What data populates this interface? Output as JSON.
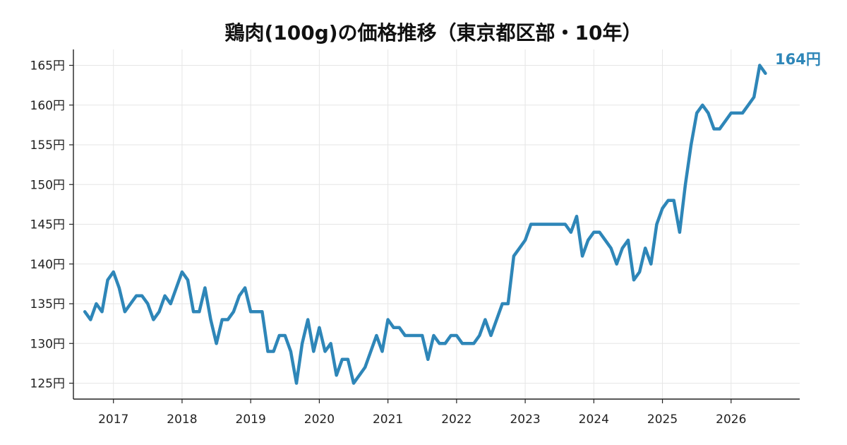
{
  "chart_data": {
    "type": "line",
    "title": "鶏肉(100g)の価格推移（東京都区部・10年）",
    "xlabel": "",
    "ylabel": "",
    "y_unit": "円",
    "ylim": [
      123,
      167
    ],
    "xlim": [
      "2016-06",
      "2027-01"
    ],
    "grid": true,
    "legend": "none",
    "line_color": "#2e86b8",
    "y_ticks": [
      "125円",
      "130円",
      "135円",
      "140円",
      "145円",
      "150円",
      "155円",
      "160円",
      "165円"
    ],
    "x_ticks": [
      "2017",
      "2018",
      "2019",
      "2020",
      "2021",
      "2022",
      "2023",
      "2024",
      "2025",
      "2026"
    ],
    "end_label": "164円",
    "series": [
      {
        "x": [
          "2016-08",
          "2016-09",
          "2016-10",
          "2016-11",
          "2016-12",
          "2017-01",
          "2017-02",
          "2017-03",
          "2017-04",
          "2017-05",
          "2017-06",
          "2017-07",
          "2017-08",
          "2017-09",
          "2017-10",
          "2017-11",
          "2017-12",
          "2018-01",
          "2018-02",
          "2018-03",
          "2018-04",
          "2018-05",
          "2018-06",
          "2018-07",
          "2018-08",
          "2018-09",
          "2018-10",
          "2018-11",
          "2018-12",
          "2019-01",
          "2019-02",
          "2019-03",
          "2019-04",
          "2019-05",
          "2019-06",
          "2019-07",
          "2019-08",
          "2019-09",
          "2019-10",
          "2019-11",
          "2019-12",
          "2020-01",
          "2020-02",
          "2020-03",
          "2020-04",
          "2020-05",
          "2020-06",
          "2020-07",
          "2020-08",
          "2020-09",
          "2020-10",
          "2020-11",
          "2020-12",
          "2021-01",
          "2021-02",
          "2021-03",
          "2021-04",
          "2021-05",
          "2021-06",
          "2021-07",
          "2021-08",
          "2021-09",
          "2021-10",
          "2021-11",
          "2021-12",
          "2022-01",
          "2022-02",
          "2022-03",
          "2022-04",
          "2022-05",
          "2022-06",
          "2022-07",
          "2022-08",
          "2022-09",
          "2022-10",
          "2022-11",
          "2022-12",
          "2023-01",
          "2023-02",
          "2023-03",
          "2023-04",
          "2023-05",
          "2023-06",
          "2023-07",
          "2023-08",
          "2023-09",
          "2023-10",
          "2023-11",
          "2023-12",
          "2024-01",
          "2024-02",
          "2024-03",
          "2024-04",
          "2024-05",
          "2024-06",
          "2024-07",
          "2024-08",
          "2024-09",
          "2024-10",
          "2024-11",
          "2024-12",
          "2025-01",
          "2025-02",
          "2025-03",
          "2025-04",
          "2025-05",
          "2025-06",
          "2025-07",
          "2025-08",
          "2025-09",
          "2025-10",
          "2025-11",
          "2025-12",
          "2026-01",
          "2026-02",
          "2026-03",
          "2026-04",
          "2026-05",
          "2026-06",
          "2026-07"
        ],
        "values": [
          134,
          133,
          135,
          134,
          138,
          139,
          137,
          134,
          135,
          136,
          136,
          135,
          133,
          134,
          136,
          135,
          137,
          139,
          138,
          134,
          134,
          137,
          133,
          130,
          133,
          133,
          134,
          136,
          137,
          134,
          134,
          134,
          129,
          129,
          131,
          131,
          129,
          125,
          130,
          133,
          129,
          132,
          129,
          130,
          126,
          128,
          128,
          125,
          126,
          127,
          129,
          131,
          129,
          133,
          132,
          132,
          131,
          131,
          131,
          131,
          128,
          131,
          130,
          130,
          131,
          131,
          130,
          130,
          130,
          131,
          133,
          131,
          133,
          135,
          135,
          141,
          142,
          143,
          145,
          145,
          145,
          145,
          145,
          145,
          145,
          144,
          146,
          141,
          143,
          144,
          144,
          143,
          142,
          140,
          142,
          143,
          138,
          139,
          142,
          140,
          145,
          147,
          148,
          148,
          144,
          150,
          155,
          159,
          160,
          159,
          157,
          157,
          158,
          159,
          159,
          159,
          160,
          161,
          165,
          164
        ]
      }
    ]
  }
}
